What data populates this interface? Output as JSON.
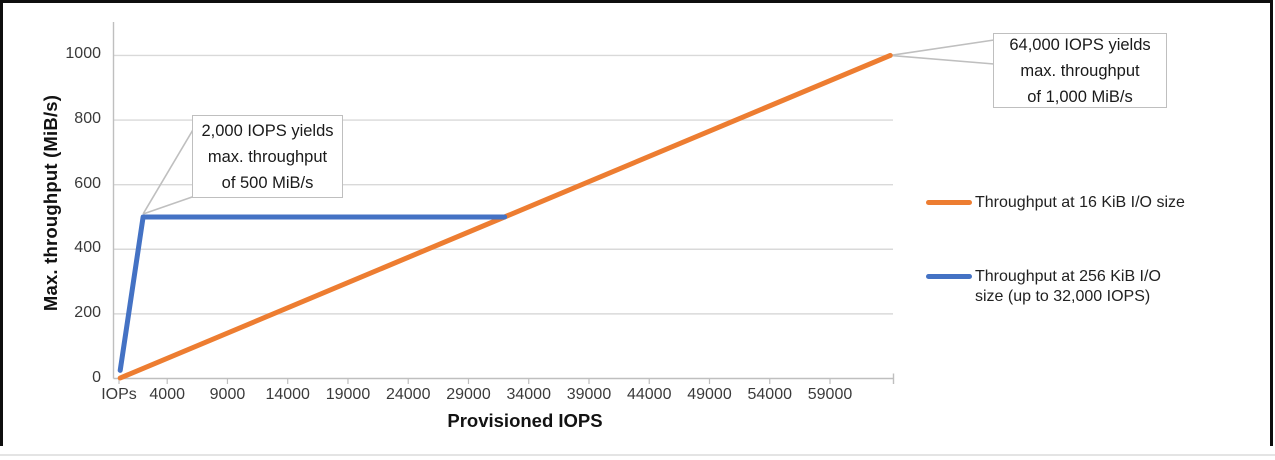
{
  "chart_data": {
    "type": "line",
    "title": "",
    "xlabel": "Provisioned IOPS",
    "ylabel": "Max. throughput (MiB/s)",
    "ylim": [
      0,
      1000
    ],
    "y_ticks": [
      0,
      200,
      400,
      600,
      800,
      1000
    ],
    "x_tick_labels": [
      "IOPs",
      "4000",
      "9000",
      "14000",
      "19000",
      "24000",
      "29000",
      "34000",
      "39000",
      "44000",
      "49000",
      "54000",
      "59000"
    ],
    "x_tick_values": [
      0,
      4000,
      9000,
      14000,
      19000,
      24000,
      29000,
      34000,
      39000,
      44000,
      49000,
      54000,
      59000
    ],
    "grid": "horizontal",
    "legend_position": "right",
    "series": [
      {
        "name": "Throughput at 16 KiB I/O size",
        "color": "#ED7D31",
        "points": [
          [
            100,
            1.5625
          ],
          [
            64000,
            1000
          ]
        ]
      },
      {
        "name": "Throughput at 256 KiB I/O size (up to 32,000 IOPS)",
        "color": "#4472C4",
        "points": [
          [
            100,
            25
          ],
          [
            2000,
            500
          ],
          [
            32000,
            500
          ]
        ]
      }
    ],
    "legend": {
      "items": [
        {
          "color": "#ED7D31",
          "lines": [
            "Throughput at 16 KiB I/O size"
          ]
        },
        {
          "color": "#4472C4",
          "lines": [
            "Throughput at 256 KiB I/O",
            "size (up to 32,000 IOPS)"
          ]
        }
      ]
    },
    "annotations": [
      {
        "lines": [
          "2,000 IOPS yields",
          "max. throughput",
          "of 500 MiB/s"
        ],
        "anchor": [
          2000,
          500
        ]
      },
      {
        "lines": [
          "64,000 IOPS yields",
          "max. throughput",
          "of 1,000 MiB/s"
        ],
        "anchor": [
          64000,
          1000
        ]
      }
    ],
    "colors": {
      "gridline": "#D9D9D9",
      "axis": "#BFBFBF",
      "callout_border": "#BFBFBF",
      "series_16kib": "#ED7D31",
      "series_256kib": "#4472C4"
    }
  }
}
